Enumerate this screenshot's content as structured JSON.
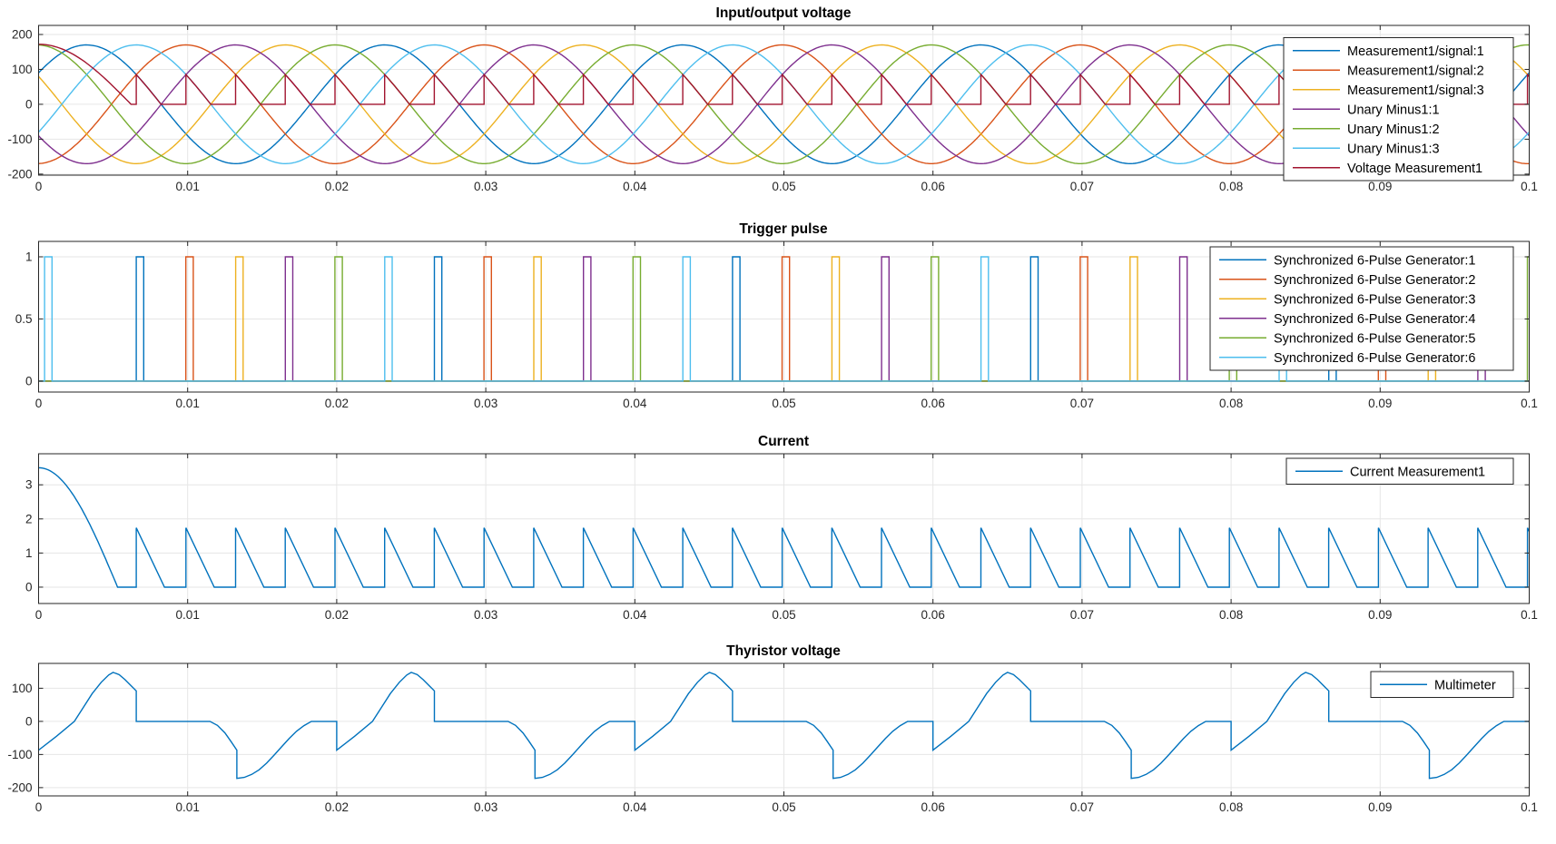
{
  "figure": {
    "background": "#ffffff",
    "axes_color": "#262626",
    "grid_color": "#e6e6e6"
  },
  "chart_data": [
    {
      "type": "line",
      "title": "Input/output voltage",
      "xlim": [
        0,
        0.1
      ],
      "ylim": [
        -203,
        226
      ],
      "xticks": [
        0,
        0.01,
        0.02,
        0.03,
        0.04,
        0.05,
        0.06,
        0.07,
        0.08,
        0.09,
        0.1
      ],
      "xtick_labels": [
        "0",
        "0.01",
        "0.02",
        "0.03",
        "0.04",
        "0.05",
        "0.06",
        "0.07",
        "0.08",
        "0.09",
        "0.1"
      ],
      "yticks": [
        -200,
        -100,
        0,
        100,
        200
      ],
      "ytick_labels": [
        "-200",
        "-100",
        "0",
        "100",
        "200"
      ],
      "grid": true,
      "legend_position": "top-right",
      "series": [
        {
          "name": "Measurement1/signal:1",
          "color": "#0072BD",
          "kind": "sine",
          "amplitude": 170,
          "freq_hz": 50,
          "phase_deg": 32
        },
        {
          "name": "Measurement1/signal:2",
          "color": "#D95319",
          "kind": "sine",
          "amplitude": 170,
          "freq_hz": 50,
          "phase_deg": -88
        },
        {
          "name": "Measurement1/signal:3",
          "color": "#EDB120",
          "kind": "sine",
          "amplitude": 170,
          "freq_hz": 50,
          "phase_deg": 152
        },
        {
          "name": "Unary Minus1:1",
          "color": "#7E2F8E",
          "kind": "sine",
          "amplitude": 170,
          "freq_hz": 50,
          "phase_deg": -148
        },
        {
          "name": "Unary Minus1:2",
          "color": "#77AC30",
          "kind": "sine",
          "amplitude": 170,
          "freq_hz": 50,
          "phase_deg": 92
        },
        {
          "name": "Unary Minus1:3",
          "color": "#4DBEEE",
          "kind": "sine",
          "amplitude": 170,
          "freq_hz": 50,
          "phase_deg": -28
        },
        {
          "name": "Voltage Measurement1",
          "color": "#A2142F",
          "kind": "rectified_dc",
          "transient_start_value": 172,
          "transient_zero_time": 0.0062,
          "firing_start": 0.00655,
          "firing_interval": 0.0033333,
          "tooth_peak": 85,
          "tooth_decay_time": 0.00167,
          "sine_amplitude": 170,
          "freq_hz": 50
        }
      ]
    },
    {
      "type": "line",
      "title": "Trigger pulse",
      "xlim": [
        0,
        0.1
      ],
      "ylim": [
        -0.088,
        1.124
      ],
      "xticks": [
        0,
        0.01,
        0.02,
        0.03,
        0.04,
        0.05,
        0.06,
        0.07,
        0.08,
        0.09,
        0.1
      ],
      "xtick_labels": [
        "0",
        "0.01",
        "0.02",
        "0.03",
        "0.04",
        "0.05",
        "0.06",
        "0.07",
        "0.08",
        "0.09",
        "0.1"
      ],
      "yticks": [
        0,
        0.5,
        1
      ],
      "ytick_labels": [
        "0",
        "0.5",
        "1"
      ],
      "grid": true,
      "legend_position": "top-right",
      "pulse_width": 0.0005,
      "pulse_high": 1,
      "pulse_low": 0,
      "series": [
        {
          "name": "Synchronized 6-Pulse Generator:1",
          "color": "#0072BD",
          "kind": "pulses",
          "times": [
            0.00655,
            0.02655,
            0.04655,
            0.06655,
            0.08655
          ]
        },
        {
          "name": "Synchronized 6-Pulse Generator:2",
          "color": "#D95319",
          "kind": "pulses",
          "times": [
            0.00988,
            0.02988,
            0.04988,
            0.06988,
            0.08988
          ]
        },
        {
          "name": "Synchronized 6-Pulse Generator:3",
          "color": "#EDB120",
          "kind": "pulses",
          "times": [
            0.01322,
            0.03322,
            0.05322,
            0.07322,
            0.09322
          ]
        },
        {
          "name": "Synchronized 6-Pulse Generator:4",
          "color": "#7E2F8E",
          "kind": "pulses",
          "times": [
            0.01655,
            0.03655,
            0.05655,
            0.07655,
            0.09655
          ]
        },
        {
          "name": "Synchronized 6-Pulse Generator:5",
          "color": "#77AC30",
          "kind": "pulses",
          "times": [
            0.01988,
            0.03988,
            0.05988,
            0.07988,
            0.09988
          ]
        },
        {
          "name": "Synchronized 6-Pulse Generator:6",
          "color": "#4DBEEE",
          "kind": "pulses",
          "times": [
            0.0004,
            0.02322,
            0.04322,
            0.06322,
            0.08322
          ]
        }
      ]
    },
    {
      "type": "line",
      "title": "Current",
      "xlim": [
        0,
        0.1
      ],
      "ylim": [
        -0.48,
        3.91
      ],
      "xticks": [
        0,
        0.01,
        0.02,
        0.03,
        0.04,
        0.05,
        0.06,
        0.07,
        0.08,
        0.09,
        0.1
      ],
      "xtick_labels": [
        "0",
        "0.01",
        "0.02",
        "0.03",
        "0.04",
        "0.05",
        "0.06",
        "0.07",
        "0.08",
        "0.09",
        "0.1"
      ],
      "yticks": [
        0,
        1,
        2,
        3
      ],
      "ytick_labels": [
        "0",
        "1",
        "2",
        "3"
      ],
      "grid": true,
      "legend_position": "top-right",
      "series": [
        {
          "name": "Current Measurement1",
          "color": "#0072BD",
          "kind": "current_teeth",
          "transient_start_value": 3.5,
          "transient_zero_time": 0.0053,
          "firing_start": 0.00655,
          "firing_interval": 0.0033333,
          "tooth_peak": 1.74,
          "tooth_decay_time": 0.0019
        }
      ]
    },
    {
      "type": "line",
      "title": "Thyristor voltage",
      "xlim": [
        0,
        0.1
      ],
      "ylim": [
        -225,
        175
      ],
      "xticks": [
        0,
        0.01,
        0.02,
        0.03,
        0.04,
        0.05,
        0.06,
        0.07,
        0.08,
        0.09,
        0.1
      ],
      "xtick_labels": [
        "0",
        "0.01",
        "0.02",
        "0.03",
        "0.04",
        "0.05",
        "0.06",
        "0.07",
        "0.08",
        "0.09",
        "0.1"
      ],
      "yticks": [
        -200,
        -100,
        0,
        100
      ],
      "ytick_labels": [
        "-200",
        "-100",
        "0",
        "100"
      ],
      "grid": true,
      "legend_position": "top-right",
      "series": [
        {
          "name": "Multimeter",
          "color": "#0072BD",
          "kind": "periodic_polyline",
          "period": 0.02,
          "repeats": 5,
          "points": [
            [
              0,
              -87
            ],
            [
              0.0012,
              -45
            ],
            [
              0.0024,
              0
            ],
            [
              0.003,
              42
            ],
            [
              0.0036,
              84
            ],
            [
              0.0042,
              118
            ],
            [
              0.0047,
              140
            ],
            [
              0.005,
              148
            ],
            [
              0.0054,
              141
            ],
            [
              0.0058,
              126
            ],
            [
              0.0062,
              108
            ],
            [
              0.00655,
              92
            ],
            [
              0.00655,
              0
            ],
            [
              0.0115,
              0
            ],
            [
              0.012,
              -12
            ],
            [
              0.0125,
              -35
            ],
            [
              0.0129,
              -60
            ],
            [
              0.0133,
              -87
            ],
            [
              0.0133,
              -172
            ],
            [
              0.0138,
              -169
            ],
            [
              0.0143,
              -160
            ],
            [
              0.0148,
              -146
            ],
            [
              0.0153,
              -126
            ],
            [
              0.0158,
              -102
            ],
            [
              0.0163,
              -77
            ],
            [
              0.0168,
              -52
            ],
            [
              0.0173,
              -30
            ],
            [
              0.0178,
              -13
            ],
            [
              0.0183,
              0
            ],
            [
              0.02,
              0
            ]
          ]
        }
      ]
    }
  ]
}
